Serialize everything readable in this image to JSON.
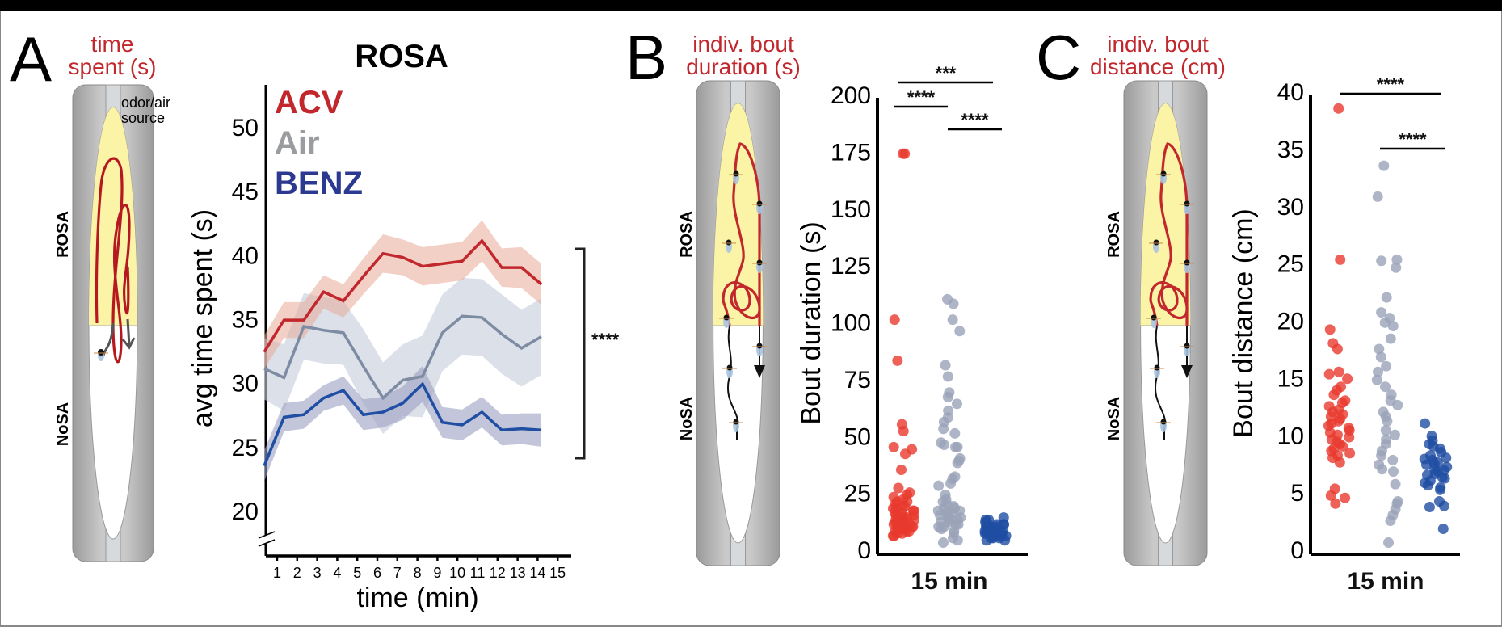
{
  "panels": {
    "A": {
      "letter": "A",
      "label_line1": "time",
      "label_line2": "spent (s)",
      "source_line1": "odor/air",
      "source_line2": "source",
      "zone_top": "ROSA",
      "zone_bottom": "NoSA"
    },
    "B": {
      "letter": "B",
      "label_line1": "indiv. bout",
      "label_line2": "duration (s)",
      "zone_top": "ROSA",
      "zone_bottom": "NoSA"
    },
    "C": {
      "letter": "C",
      "label_line1": "indiv. bout",
      "label_line2": "distance (cm)",
      "zone_top": "ROSA",
      "zone_bottom": "NoSA"
    }
  },
  "colors": {
    "acv": "#c1272d",
    "acv_band": "#e8a998",
    "air": "#7d8ca3",
    "air_band": "#c5ccd9",
    "air_legend": "#9a9c9f",
    "benz": "#1f4ea3",
    "benz_band": "#9b9fc1",
    "benz_legend": "#2b3990",
    "red_dot": "#e8392e",
    "gray_dot": "#9aa3b8",
    "blue_dot": "#1f4ea3"
  },
  "chart_data": [
    {
      "id": "rosa-time-spent",
      "type": "line",
      "title": "ROSA",
      "xlabel": "time (min)",
      "ylabel": "avg time spent (s)",
      "x": [
        1,
        2,
        3,
        4,
        5,
        6,
        7,
        8,
        9,
        10,
        11,
        12,
        13,
        14,
        15
      ],
      "xticks": [
        "1",
        "2",
        "3",
        "4",
        "5",
        "6",
        "7",
        "8",
        "9",
        "10",
        "11",
        "12",
        "13",
        "14",
        "15"
      ],
      "yticks": [
        "20",
        "25",
        "30",
        "35",
        "40",
        "45",
        "50"
      ],
      "ylim": [
        20,
        50
      ],
      "axis_break": true,
      "legend_placement": "top-left",
      "series": [
        {
          "name": "ACV",
          "key": "acv",
          "values": [
            32.4,
            34.9,
            34.9,
            37.1,
            36.4,
            38.3,
            40.1,
            39.8,
            39.1,
            39.3,
            39.5,
            41.1,
            39.0,
            39.0,
            37.7
          ],
          "sem": [
            1.3,
            1.4,
            1.4,
            1.3,
            1.3,
            1.4,
            1.5,
            1.4,
            1.5,
            1.5,
            1.5,
            1.6,
            1.5,
            1.6,
            1.6
          ]
        },
        {
          "name": "Air",
          "key": "air",
          "values": [
            31.1,
            30.4,
            34.4,
            34.1,
            33.9,
            31.3,
            28.8,
            30.2,
            30.5,
            33.9,
            35.2,
            35.1,
            33.8,
            32.7,
            33.6
          ],
          "sem": [
            2.4,
            2.6,
            2.6,
            2.6,
            2.5,
            2.9,
            2.8,
            2.8,
            3.2,
            3.0,
            3.0,
            3.0,
            3.1,
            3.0,
            3.0
          ]
        },
        {
          "name": "BENZ",
          "key": "benz",
          "values": [
            23.5,
            27.3,
            27.5,
            28.8,
            29.4,
            27.5,
            27.7,
            28.4,
            29.9,
            26.9,
            26.7,
            27.7,
            26.3,
            26.4,
            26.3
          ],
          "sem": [
            1.2,
            1.1,
            1.1,
            1.0,
            1.1,
            1.2,
            1.2,
            1.3,
            1.4,
            1.2,
            1.2,
            1.2,
            1.2,
            1.2,
            1.3
          ]
        }
      ],
      "significance": {
        "label": "****",
        "span": "ACV vs BENZ"
      }
    },
    {
      "id": "bout-duration",
      "type": "scatter",
      "title": "",
      "xlabel": "15 min",
      "ylabel": "Bout duration (s)",
      "ylim": [
        0,
        200
      ],
      "yticks": [
        "0",
        "25",
        "50",
        "75",
        "100",
        "125",
        "150",
        "175",
        "200"
      ],
      "groups": [
        {
          "name": "ACV",
          "key": "red",
          "values": [
            174,
            174,
            101,
            83,
            55,
            52,
            45,
            44,
            42,
            35,
            27,
            25,
            24,
            23,
            22,
            21,
            21,
            20,
            19,
            19,
            18,
            18,
            17,
            17,
            16,
            16,
            15,
            15,
            15,
            14,
            14,
            14,
            13,
            13,
            13,
            12,
            12,
            12,
            12,
            11,
            11,
            11,
            11,
            10,
            10,
            10,
            10,
            9,
            9,
            9,
            8,
            8,
            8,
            7,
            7,
            6,
            6
          ]
        },
        {
          "name": "Air",
          "key": "gray",
          "values": [
            110,
            108,
            101,
            96,
            81,
            76,
            69,
            67,
            64,
            61,
            58,
            56,
            53,
            51,
            47,
            46,
            45,
            45,
            40,
            39,
            38,
            32,
            31,
            29,
            28,
            24,
            22,
            21,
            20,
            19,
            18,
            18,
            17,
            17,
            16,
            16,
            15,
            15,
            14,
            14,
            13,
            13,
            12,
            12,
            11,
            11,
            10,
            10,
            9,
            8,
            7,
            5,
            4,
            3
          ]
        },
        {
          "name": "BENZ",
          "key": "blue",
          "values": [
            14,
            13,
            13,
            12,
            12,
            11,
            11,
            11,
            10,
            10,
            10,
            10,
            9,
            9,
            9,
            9,
            9,
            8,
            8,
            8,
            8,
            8,
            8,
            7,
            7,
            7,
            7,
            7,
            7,
            6,
            6,
            6,
            6,
            6,
            5,
            5,
            5,
            4,
            4
          ]
        }
      ],
      "significance": [
        {
          "label": "****",
          "pair": [
            "ACV",
            "Air"
          ]
        },
        {
          "label": "***",
          "pair": [
            "ACV",
            "BENZ"
          ]
        },
        {
          "label": "****",
          "pair": [
            "Air",
            "BENZ"
          ]
        }
      ]
    },
    {
      "id": "bout-distance",
      "type": "scatter",
      "title": "",
      "xlabel": "15 min",
      "ylabel": "Bout distance (cm)",
      "ylim": [
        0,
        40
      ],
      "yticks": [
        "0",
        "5",
        "10",
        "15",
        "20",
        "25",
        "30",
        "35",
        "40"
      ],
      "groups": [
        {
          "name": "ACV",
          "key": "red",
          "values": [
            38.5,
            25.3,
            19.2,
            18.0,
            17.5,
            15.5,
            15.3,
            14.9,
            14.2,
            13.9,
            13.5,
            13.0,
            12.8,
            12.5,
            12.2,
            12.0,
            11.8,
            11.6,
            11.4,
            11.2,
            11.0,
            10.8,
            10.6,
            10.4,
            10.2,
            10.0,
            9.8,
            9.6,
            9.4,
            9.2,
            9.0,
            8.8,
            8.6,
            8.4,
            8.2,
            8.0,
            7.6,
            5.3,
            4.7,
            4.5,
            4.0
          ]
        },
        {
          "name": "Air",
          "key": "gray",
          "values": [
            33.5,
            30.8,
            25.3,
            25.2,
            24.6,
            22.0,
            20.7,
            20.2,
            19.8,
            19.5,
            18.4,
            17.5,
            16.8,
            16.0,
            15.5,
            14.8,
            14.2,
            13.5,
            13.0,
            12.6,
            12.0,
            11.6,
            11.2,
            10.4,
            10.0,
            9.6,
            9.2,
            8.6,
            8.2,
            7.8,
            7.4,
            7.0,
            6.8,
            5.7,
            4.2,
            4.0,
            3.5,
            3.0,
            2.5,
            0.6
          ]
        },
        {
          "name": "BENZ",
          "key": "blue",
          "values": [
            11.0,
            9.9,
            9.5,
            9.2,
            9.0,
            8.8,
            8.5,
            8.2,
            8.0,
            7.9,
            7.8,
            7.6,
            7.5,
            7.4,
            7.2,
            7.0,
            6.9,
            6.8,
            6.6,
            6.5,
            6.3,
            6.2,
            6.0,
            5.8,
            5.6,
            5.4,
            5.2,
            4.2,
            3.8,
            3.7,
            1.8
          ]
        }
      ],
      "significance": [
        {
          "label": "****",
          "pair": [
            "ACV",
            "BENZ"
          ]
        },
        {
          "label": "****",
          "pair": [
            "Air",
            "BENZ"
          ]
        }
      ]
    }
  ]
}
